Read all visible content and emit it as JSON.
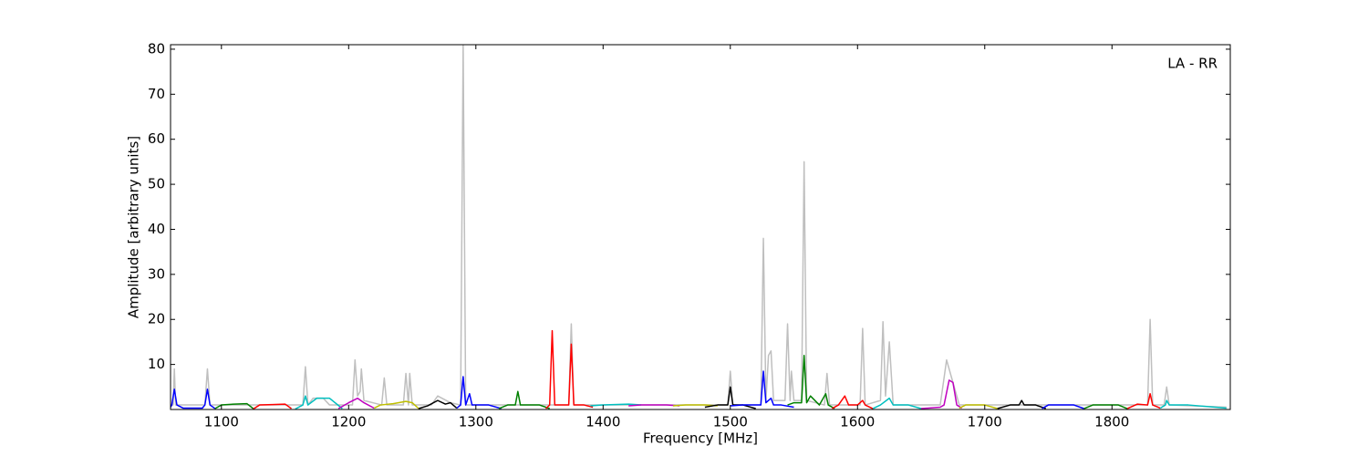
{
  "chart_data": {
    "type": "line",
    "annotation": "LA - RR",
    "x_label": "Frequency [MHz]",
    "y_label": "Amplitude [arbitrary units]",
    "xlim": [
      1060,
      1893
    ],
    "ylim": [
      0,
      81
    ],
    "xticks": [
      1100,
      1200,
      1300,
      1400,
      1500,
      1600,
      1700,
      1800
    ],
    "yticks": [
      10,
      20,
      30,
      40,
      50,
      60,
      70,
      80
    ],
    "series": [
      {
        "color": "#bfbfbf",
        "x": [
          1060,
          1062,
          1063,
          1064,
          1087,
          1089,
          1091,
          1164,
          1166,
          1168,
          1172,
          1180,
          1185,
          1203,
          1205,
          1207,
          1209,
          1210,
          1212,
          1226,
          1228,
          1230,
          1243,
          1245,
          1247,
          1248,
          1250,
          1265,
          1270,
          1280,
          1288,
          1290,
          1292,
          1373,
          1375,
          1377,
          1498,
          1500,
          1502,
          1524,
          1526,
          1528,
          1530,
          1532,
          1534,
          1543,
          1545,
          1547,
          1548,
          1550,
          1556,
          1558,
          1560,
          1574,
          1576,
          1578,
          1602,
          1604,
          1606,
          1618,
          1620,
          1622,
          1625,
          1628,
          1665,
          1670,
          1672,
          1675,
          1680,
          1828,
          1830,
          1832,
          1841,
          1843,
          1845,
          1890
        ],
        "values": [
          1,
          1,
          9,
          1,
          1,
          9,
          1,
          1,
          9.5,
          1,
          2.5,
          2.5,
          1,
          1,
          11,
          3,
          4,
          9,
          2,
          1,
          7,
          1,
          1,
          8,
          1,
          8,
          1,
          1,
          3,
          1.5,
          1,
          81,
          1,
          1,
          19,
          1,
          1,
          8.5,
          1,
          1,
          38,
          2,
          12,
          13,
          2,
          2,
          19,
          2,
          8.5,
          2,
          2,
          55,
          2,
          1,
          8,
          1,
          1,
          18,
          1,
          2,
          19.5,
          3,
          15,
          1,
          1,
          11,
          9,
          6,
          1,
          1,
          20,
          1,
          1,
          5,
          1,
          0.5
        ]
      },
      {
        "color": "#0000ff",
        "x": [
          1060,
          1061,
          1063,
          1065,
          1070,
          1085,
          1087,
          1089,
          1091,
          1095
        ],
        "values": [
          0.5,
          1,
          4.5,
          1,
          0.3,
          0.3,
          1,
          4.5,
          1,
          0.2
        ]
      },
      {
        "color": "#008000",
        "x": [
          1095,
          1100,
          1110,
          1120,
          1125
        ],
        "values": [
          0.2,
          1,
          1.2,
          1.3,
          0.2
        ]
      },
      {
        "color": "#ff0000",
        "x": [
          1125,
          1130,
          1140,
          1150,
          1155
        ],
        "values": [
          0.1,
          1,
          1.1,
          1.2,
          0.2
        ]
      },
      {
        "color": "#00bfbf",
        "x": [
          1158,
          1164,
          1166,
          1168,
          1175,
          1185,
          1195
        ],
        "values": [
          0.1,
          1,
          3,
          1,
          2.5,
          2.5,
          0.2
        ]
      },
      {
        "color": "#bf00bf",
        "x": [
          1192,
          1200,
          1207,
          1212,
          1220
        ],
        "values": [
          0.2,
          1.5,
          2.5,
          1.5,
          0.3
        ]
      },
      {
        "color": "#bfbf00",
        "x": [
          1220,
          1225,
          1235,
          1245,
          1250,
          1255
        ],
        "values": [
          0.3,
          1,
          1.3,
          1.8,
          1.5,
          0.2
        ]
      },
      {
        "color": "#000000",
        "x": [
          1255,
          1262,
          1270,
          1276,
          1280,
          1285
        ],
        "values": [
          0.2,
          0.8,
          2,
          1.2,
          1.5,
          0.3
        ]
      },
      {
        "color": "#0000ff",
        "x": [
          1285,
          1288,
          1290,
          1292,
          1295,
          1297,
          1310,
          1320
        ],
        "values": [
          0.3,
          1,
          7.3,
          1,
          3.5,
          1,
          1,
          0.2
        ]
      },
      {
        "color": "#008000",
        "x": [
          1318,
          1325,
          1331,
          1333,
          1335,
          1350,
          1358
        ],
        "values": [
          0.2,
          1,
          1,
          4,
          1,
          1,
          0.2
        ]
      },
      {
        "color": "#ff0000",
        "x": [
          1355,
          1358,
          1360,
          1362,
          1373,
          1375,
          1377,
          1385,
          1392
        ],
        "values": [
          0.2,
          1,
          17.5,
          1,
          1,
          14.5,
          1,
          1,
          0.5
        ]
      },
      {
        "color": "#00bfbf",
        "x": [
          1390,
          1400,
          1420,
          1430
        ],
        "values": [
          0.8,
          1,
          1.2,
          1
        ]
      },
      {
        "color": "#bf00bf",
        "x": [
          1420,
          1430,
          1450,
          1460
        ],
        "values": [
          0.8,
          1,
          1,
          0.8
        ]
      },
      {
        "color": "#bfbf00",
        "x": [
          1455,
          1465,
          1480,
          1490
        ],
        "values": [
          0.8,
          1,
          1,
          0.8
        ]
      },
      {
        "color": "#000000",
        "x": [
          1480,
          1490,
          1498,
          1500,
          1502,
          1510,
          1520
        ],
        "values": [
          0.5,
          1,
          1,
          5,
          1,
          1,
          0.2
        ]
      },
      {
        "color": "#0000ff",
        "x": [
          1500,
          1510,
          1524,
          1526,
          1528,
          1532,
          1534,
          1540,
          1550
        ],
        "values": [
          0.8,
          1,
          1,
          8.5,
          1.5,
          2.5,
          1,
          1,
          0.5
        ]
      },
      {
        "color": "#008000",
        "x": [
          1545,
          1550,
          1556,
          1558,
          1560,
          1563,
          1570,
          1575,
          1577,
          1582
        ],
        "values": [
          1,
          1.5,
          1.5,
          12,
          1.5,
          3,
          1,
          3.5,
          1,
          0.2
        ]
      },
      {
        "color": "#ff0000",
        "x": [
          1580,
          1585,
          1590,
          1593,
          1600,
          1604,
          1606,
          1612
        ],
        "values": [
          0.2,
          1,
          3,
          1,
          1,
          2,
          1,
          0.2
        ]
      },
      {
        "color": "#00bfbf",
        "x": [
          1612,
          1618,
          1625,
          1628,
          1640,
          1650
        ],
        "values": [
          0.2,
          1,
          2.5,
          1,
          1,
          0.2
        ]
      },
      {
        "color": "#bf00bf",
        "x": [
          1650,
          1665,
          1668,
          1672,
          1675,
          1678,
          1682
        ],
        "values": [
          0.2,
          0.5,
          1,
          6.5,
          6,
          1,
          0.3
        ]
      },
      {
        "color": "#bfbf00",
        "x": [
          1680,
          1685,
          1700,
          1710
        ],
        "values": [
          0.3,
          1,
          1,
          0.2
        ]
      },
      {
        "color": "#000000",
        "x": [
          1710,
          1720,
          1727,
          1729,
          1731,
          1740,
          1748
        ],
        "values": [
          0.2,
          1,
          1,
          2,
          1,
          1,
          0.2
        ]
      },
      {
        "color": "#0000ff",
        "x": [
          1745,
          1750,
          1770,
          1778
        ],
        "values": [
          0.2,
          1,
          1,
          0.2
        ]
      },
      {
        "color": "#008000",
        "x": [
          1778,
          1785,
          1805,
          1812
        ],
        "values": [
          0.2,
          1,
          1,
          0.2
        ]
      },
      {
        "color": "#ff0000",
        "x": [
          1812,
          1820,
          1828,
          1830,
          1832,
          1838
        ],
        "values": [
          0.2,
          1.2,
          1,
          3.5,
          1,
          0.3
        ]
      },
      {
        "color": "#00bfbf",
        "x": [
          1838,
          1842,
          1843,
          1845,
          1860,
          1890
        ],
        "values": [
          0.3,
          1,
          2,
          1,
          1,
          0.3
        ]
      }
    ]
  }
}
